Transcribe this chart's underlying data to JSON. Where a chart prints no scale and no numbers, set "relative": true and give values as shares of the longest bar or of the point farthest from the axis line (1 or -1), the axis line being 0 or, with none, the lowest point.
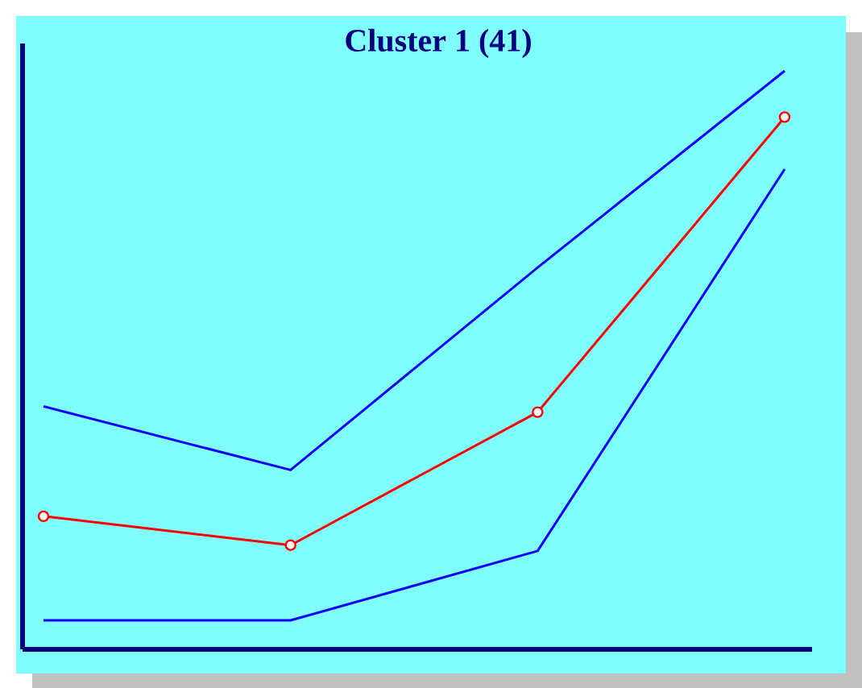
{
  "chart_data": {
    "type": "line",
    "title": "Cluster 1 (41)",
    "relative": true,
    "categories": [
      null,
      null,
      null,
      null
    ],
    "series": [
      {
        "color": "#0000ff",
        "marker": "none",
        "values": [
          0.42,
          0.31,
          0.66,
          1
        ]
      },
      {
        "color": "#ff0000",
        "marker": "circle",
        "values": [
          0.23,
          0.18,
          0.41,
          0.92
        ]
      },
      {
        "color": "#0000ff",
        "marker": "none",
        "values": [
          0.05,
          0.05,
          0.17,
          0.83
        ]
      }
    ]
  }
}
